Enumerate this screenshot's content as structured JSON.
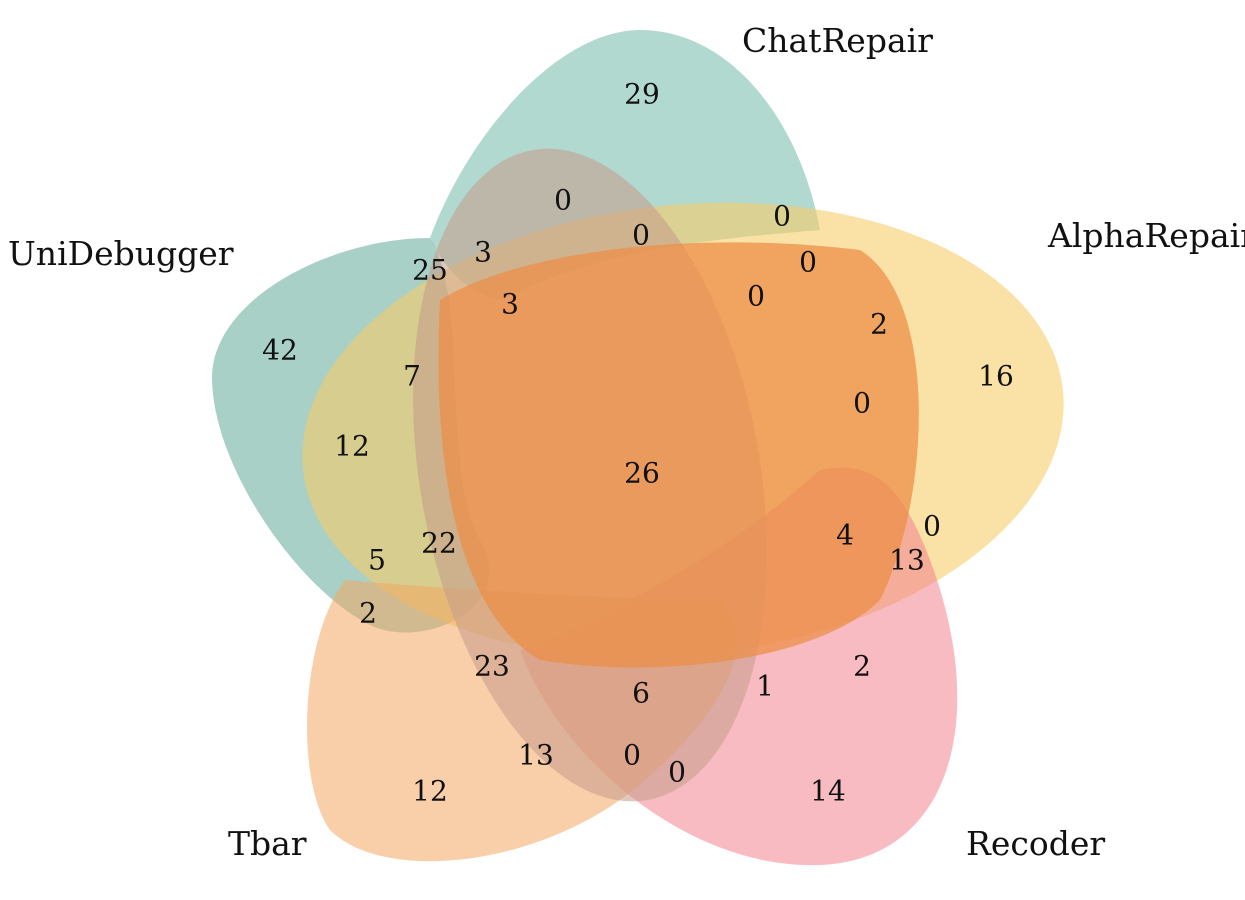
{
  "sets": [
    {
      "name": "ChatRepair",
      "color": "#7fbfb0"
    },
    {
      "name": "AlphaRepair",
      "color": "#f7cc66"
    },
    {
      "name": "Recoder",
      "color": "#f1838e"
    },
    {
      "name": "Tbar",
      "color": "#f3a862"
    },
    {
      "name": "UniDebugger",
      "color": "#6aae9e"
    }
  ],
  "region_values": [
    "29",
    "0",
    "0",
    "0",
    "0",
    "3",
    "25",
    "3",
    "42",
    "0",
    "2",
    "7",
    "16",
    "0",
    "12",
    "26",
    "4",
    "0",
    "22",
    "5",
    "13",
    "2",
    "23",
    "6",
    "1",
    "2",
    "13",
    "0",
    "0",
    "12",
    "14"
  ]
}
